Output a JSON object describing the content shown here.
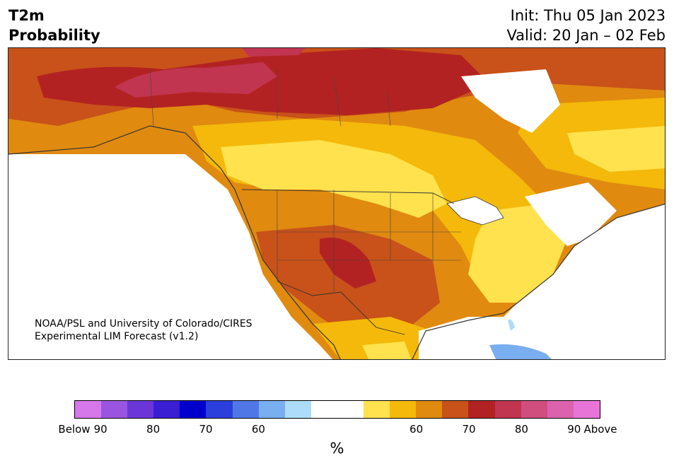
{
  "header": {
    "title_line1": "T2m",
    "title_line2": "Probability",
    "init_line": "Init: Thu 05 Jan 2023",
    "valid_line": "Valid: 20 Jan – 02 Feb"
  },
  "credit": {
    "line1": "NOAA/PSL and University of Colorado/CIRES",
    "line2": "Experimental LIM Forecast (v1.2)"
  },
  "colorbar": {
    "colors_below": [
      "#d677ea",
      "#9a55e0",
      "#6b36d8",
      "#3a1ed3",
      "#0000cc",
      "#2a3fdc",
      "#5077e6",
      "#79aef0",
      "#addcfb"
    ],
    "color_neutral": "#ffffff",
    "colors_above": [
      "#ffe24d",
      "#f4b90a",
      "#e08a10",
      "#c85219",
      "#b32222",
      "#c13550",
      "#d04e7e",
      "#dd62ad",
      "#e874d8"
    ],
    "ticks": [
      "Below",
      "90",
      "80",
      "70",
      "60",
      "60",
      "70",
      "80",
      "90",
      "Above"
    ],
    "unit": "%"
  }
}
